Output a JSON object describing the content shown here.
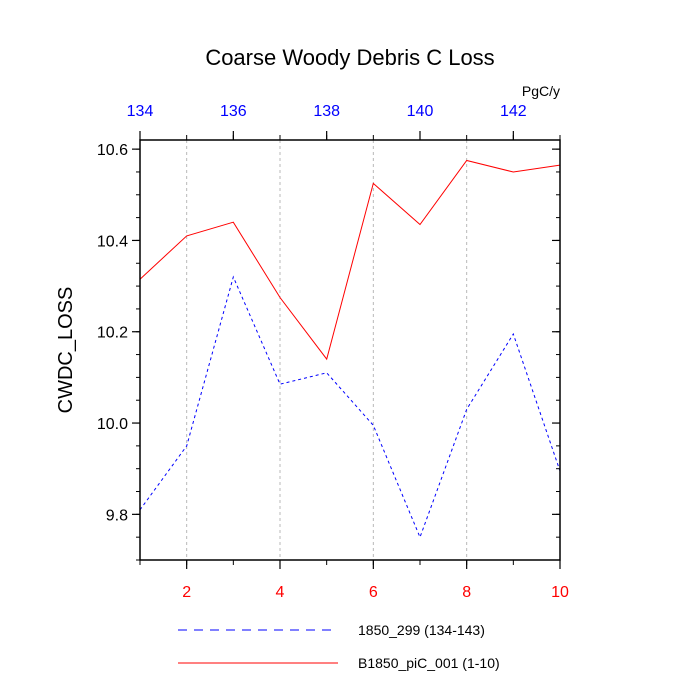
{
  "chart_data": {
    "type": "line",
    "title": "Coarse Woody Debris C Loss",
    "ylabel": "CWDC_LOSS",
    "units": "PgC/y",
    "ylim": [
      9.7,
      10.62
    ],
    "yticks": [
      "9.8",
      "10.0",
      "10.2",
      "10.4",
      "10.6"
    ],
    "x_bottom": {
      "range": [
        1,
        10
      ],
      "ticks": [
        "2",
        "4",
        "6",
        "8",
        "10"
      ],
      "color": "#ff0000"
    },
    "x_top": {
      "range": [
        134,
        143
      ],
      "ticks": [
        "134",
        "136",
        "138",
        "140",
        "142"
      ],
      "color": "#0000ff"
    },
    "grid": "vertical-dashed",
    "series": [
      {
        "name": "1850_299 (134-143)",
        "color": "#0000ff",
        "dash": "dashed",
        "axis": "top",
        "x": [
          134,
          135,
          136,
          137,
          138,
          139,
          140,
          141,
          142,
          143
        ],
        "values": [
          9.81,
          9.95,
          10.32,
          10.085,
          10.11,
          9.995,
          9.75,
          10.03,
          10.195,
          9.895
        ]
      },
      {
        "name": "B1850_piC_001 (1-10)",
        "color": "#ff0000",
        "dash": "solid",
        "axis": "bottom",
        "x": [
          1,
          2,
          3,
          4,
          5,
          6,
          7,
          8,
          9,
          10
        ],
        "values": [
          10.315,
          10.41,
          10.44,
          10.275,
          10.14,
          10.525,
          10.435,
          10.575,
          10.55,
          10.565
        ]
      }
    ]
  }
}
